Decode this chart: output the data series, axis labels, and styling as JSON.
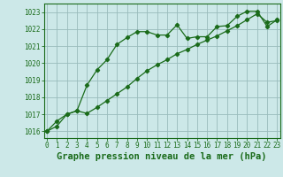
{
  "xlabel": "Graphe pression niveau de la mer (hPa)",
  "background_color": "#cce8e8",
  "grid_color": "#99bbbb",
  "line_color": "#1a6b1a",
  "x_ticks": [
    0,
    1,
    2,
    3,
    4,
    5,
    6,
    7,
    8,
    9,
    10,
    11,
    12,
    13,
    14,
    15,
    16,
    17,
    18,
    19,
    20,
    21,
    22,
    23
  ],
  "y_ticks": [
    1016,
    1017,
    1018,
    1019,
    1020,
    1021,
    1022,
    1023
  ],
  "ylim": [
    1015.6,
    1023.5
  ],
  "xlim": [
    -0.3,
    23.3
  ],
  "series1_x": [
    0,
    1,
    2,
    3,
    4,
    5,
    6,
    7,
    8,
    9,
    10,
    11,
    12,
    13,
    14,
    15,
    16,
    17,
    18,
    19,
    20,
    21,
    22,
    23
  ],
  "series1_y": [
    1016.0,
    1016.6,
    1017.0,
    1017.2,
    1018.7,
    1019.6,
    1020.2,
    1021.1,
    1021.5,
    1021.85,
    1021.85,
    1021.65,
    1021.65,
    1022.25,
    1021.45,
    1021.55,
    1021.55,
    1022.15,
    1022.2,
    1022.75,
    1023.05,
    1023.05,
    1022.15,
    1022.55
  ],
  "series2_x": [
    0,
    1,
    2,
    3,
    4,
    5,
    6,
    7,
    8,
    9,
    10,
    11,
    12,
    13,
    14,
    15,
    16,
    17,
    18,
    19,
    20,
    21,
    22,
    23
  ],
  "series2_y": [
    1016.0,
    1016.3,
    1017.0,
    1017.2,
    1017.05,
    1017.4,
    1017.8,
    1018.2,
    1018.6,
    1019.1,
    1019.55,
    1019.9,
    1020.2,
    1020.55,
    1020.8,
    1021.1,
    1021.35,
    1021.6,
    1021.9,
    1022.2,
    1022.55,
    1022.9,
    1022.4,
    1022.5
  ],
  "marker_style": "D",
  "marker_size": 2.2,
  "linewidth": 0.9,
  "xlabel_fontsize": 7.5,
  "tick_fontsize": 5.5
}
